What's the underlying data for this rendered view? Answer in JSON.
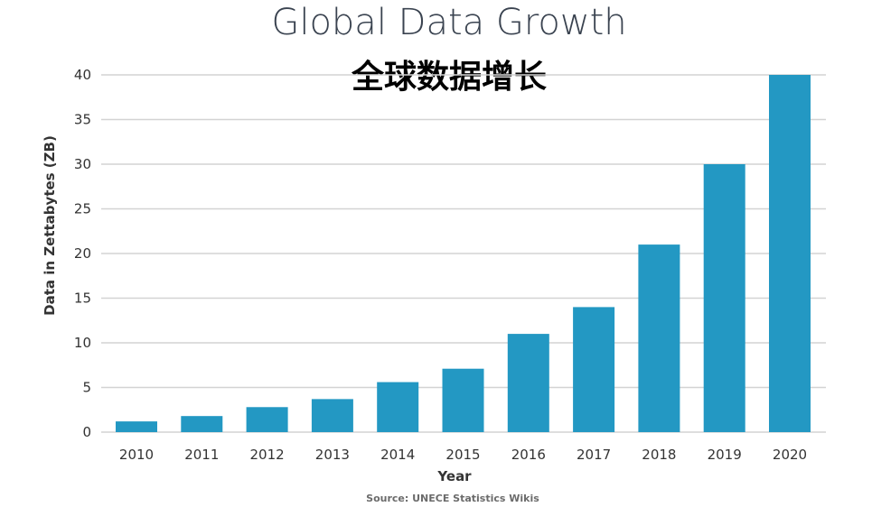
{
  "chart_data": {
    "type": "bar",
    "title": "Global Data Growth",
    "subtitle": "全球数据增长",
    "xlabel": "Year",
    "ylabel": "Data in Zettabytes (ZB)",
    "source": "Source: UNECE Statistics Wikis",
    "categories": [
      "2010",
      "2011",
      "2012",
      "2013",
      "2014",
      "2015",
      "2016",
      "2017",
      "2018",
      "2019",
      "2020"
    ],
    "values": [
      1.2,
      1.8,
      2.8,
      3.7,
      5.6,
      7.1,
      11,
      14,
      21,
      30,
      40
    ],
    "ylim": [
      0,
      40
    ],
    "yticks": [
      "0",
      "5",
      "10",
      "15",
      "20",
      "25",
      "30",
      "35",
      "40"
    ],
    "grid": true,
    "bar_color": "#2398c3",
    "grid_color": "#d3d3d3"
  }
}
